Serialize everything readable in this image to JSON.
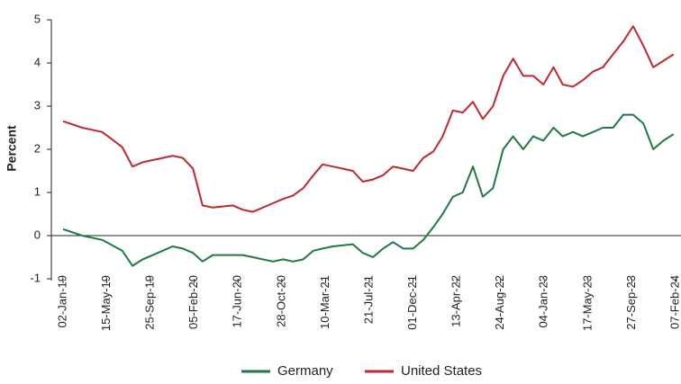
{
  "chart_data": {
    "type": "line",
    "ylabel": "Percent",
    "x": [
      "02-Jan-19",
      "01-Mar-19",
      "01-May-19",
      "01-Jul-19",
      "01-Aug-19",
      "01-Sep-19",
      "01-Nov-19",
      "01-Dec-19",
      "01-Jan-20",
      "01-Feb-20",
      "01-Mar-20",
      "01-Apr-20",
      "01-Jun-20",
      "01-Jul-20",
      "01-Aug-20",
      "01-Oct-20",
      "01-Nov-20",
      "01-Dec-20",
      "01-Jan-21",
      "01-Feb-21",
      "01-Mar-21",
      "01-Apr-21",
      "01-Jun-21",
      "01-Jul-21",
      "01-Aug-21",
      "01-Sep-21",
      "01-Oct-21",
      "01-Nov-21",
      "01-Dec-21",
      "01-Jan-22",
      "01-Feb-22",
      "01-Mar-22",
      "01-Apr-22",
      "01-May-22",
      "01-Jun-22",
      "01-Jul-22",
      "01-Aug-22",
      "01-Sep-22",
      "01-Oct-22",
      "01-Nov-22",
      "01-Dec-22",
      "01-Jan-23",
      "01-Feb-23",
      "01-Mar-23",
      "01-Apr-23",
      "01-May-23",
      "01-Jun-23",
      "01-Jul-23",
      "01-Aug-23",
      "01-Sep-23",
      "01-Oct-23",
      "01-Nov-23",
      "01-Dec-23",
      "01-Jan-24",
      "01-Feb-24"
    ],
    "series": [
      {
        "name": "Germany",
        "color": "#1e7a45",
        "values": [
          0.15,
          0.0,
          -0.1,
          -0.35,
          -0.7,
          -0.55,
          -0.35,
          -0.25,
          -0.3,
          -0.4,
          -0.6,
          -0.45,
          -0.45,
          -0.45,
          -0.5,
          -0.6,
          -0.55,
          -0.6,
          -0.55,
          -0.35,
          -0.3,
          -0.25,
          -0.2,
          -0.4,
          -0.5,
          -0.3,
          -0.15,
          -0.3,
          -0.3,
          -0.1,
          0.2,
          0.5,
          0.9,
          1.0,
          1.6,
          0.9,
          1.1,
          2.0,
          2.3,
          2.0,
          2.3,
          2.2,
          2.5,
          2.3,
          2.4,
          2.3,
          2.4,
          2.5,
          2.5,
          2.8,
          2.8,
          2.6,
          2.0,
          2.2,
          2.35
        ]
      },
      {
        "name": "United States",
        "color": "#c0282d",
        "values": [
          2.65,
          2.5,
          2.4,
          2.05,
          1.6,
          1.7,
          1.8,
          1.85,
          1.8,
          1.55,
          0.7,
          0.65,
          0.7,
          0.6,
          0.55,
          0.75,
          0.85,
          0.93,
          1.1,
          1.4,
          1.65,
          1.6,
          1.5,
          1.25,
          1.3,
          1.4,
          1.6,
          1.55,
          1.5,
          1.8,
          1.95,
          2.3,
          2.9,
          2.85,
          3.1,
          2.7,
          3.0,
          3.7,
          4.1,
          3.7,
          3.7,
          3.5,
          3.9,
          3.5,
          3.45,
          3.6,
          3.8,
          3.9,
          4.2,
          4.5,
          4.85,
          4.4,
          3.9,
          4.05,
          4.2
        ]
      }
    ],
    "xticks": [
      "02-Jan-19",
      "15-May-19",
      "25-Sep-19",
      "05-Feb-20",
      "17-Jun-20",
      "28-Oct-20",
      "10-Mar-21",
      "21-Jul-21",
      "01-Dec-21",
      "13-Apr-22",
      "24-Aug-22",
      "04-Jan-23",
      "17-May-23",
      "27-Sep-23",
      "07-Feb-24"
    ],
    "ylim": [
      -1,
      5
    ],
    "yticks": [
      -1,
      0,
      1,
      2,
      3,
      4,
      5
    ]
  }
}
